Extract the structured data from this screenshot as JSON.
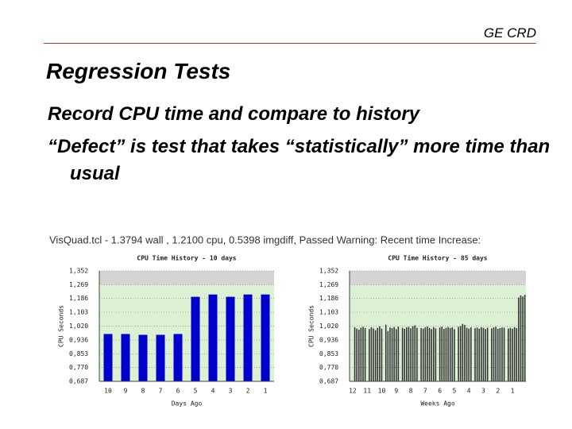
{
  "header": {
    "org": "GE CRD"
  },
  "title": "Regression Tests",
  "bullets": [
    "Record CPU time and compare to history",
    "“Defect” is test that takes “statistically” more time than usual"
  ],
  "caption": "VisQuad.tcl - 1.3794 wall , 1.2100 cpu, 0.5398 imgdiff, Passed Warning: Recent time Increase:",
  "chart_data": [
    {
      "type": "bar",
      "title": "CPU Time History - 10 days",
      "xlabel": "Days Ago",
      "ylabel": "CPU Seconds",
      "color": "#0000cc",
      "categories": [
        "10",
        "9",
        "8",
        "7",
        "6",
        "5",
        "4",
        "3",
        "2",
        "1"
      ],
      "values": [
        0.972,
        0.972,
        0.967,
        0.967,
        0.972,
        1.196,
        1.21,
        1.196,
        1.21,
        1.21
      ],
      "ylim": [
        0.687,
        1.352
      ],
      "yticks": [
        {
          "value": 0.687,
          "label": "0,687"
        },
        {
          "value": 0.77,
          "label": "0,770"
        },
        {
          "value": 0.853,
          "label": "0,853"
        },
        {
          "value": 0.936,
          "label": "0,936"
        },
        {
          "value": 1.02,
          "label": "1,020"
        },
        {
          "value": 1.103,
          "label": "1,103"
        },
        {
          "value": 1.186,
          "label": "1,186"
        },
        {
          "value": 1.269,
          "label": "1,269"
        },
        {
          "value": 1.352,
          "label": "1,352"
        }
      ],
      "grid": true
    },
    {
      "type": "bar",
      "title": "CPU Time History - 85 days",
      "xlabel": "Weeks Ago",
      "ylabel": "CPU Seconds",
      "color": "#333333",
      "categories": [
        null,
        "12",
        null,
        null,
        null,
        null,
        null,
        null,
        "11",
        null,
        null,
        null,
        null,
        null,
        null,
        "10",
        null,
        null,
        null,
        null,
        null,
        null,
        "9",
        null,
        null,
        null,
        null,
        null,
        null,
        "8",
        null,
        null,
        null,
        null,
        null,
        null,
        "7",
        null,
        null,
        null,
        null,
        null,
        null,
        "6",
        null,
        null,
        null,
        null,
        null,
        null,
        "5",
        null,
        null,
        null,
        null,
        null,
        null,
        "4",
        null,
        null,
        null,
        null,
        null,
        null,
        "3",
        null,
        null,
        null,
        null,
        null,
        null,
        "2",
        null,
        null,
        null,
        null,
        null,
        null,
        "1",
        null,
        null,
        null,
        null,
        null,
        null
      ],
      "values": [
        null,
        null,
        1.012,
        1.005,
        0.998,
        1.01,
        1.015,
        1.008,
        null,
        1.002,
        1.013,
        1.006,
        0.995,
        1.009,
        1.018,
        1.004,
        null,
        1.028,
        0.99,
        1.011,
        1.007,
        1.014,
        1.001,
        1.016,
        null,
        1.009,
        1.003,
        1.012,
        1.015,
        1.006,
        1.019,
        1.024,
        1.01,
        null,
        1.008,
        1.004,
        1.012,
        1.017,
        1.009,
        1.002,
        1.013,
        1.006,
        null,
        1.011,
        1.016,
        1.003,
        1.009,
        1.014,
        1.008,
        1.012,
        1.001,
        null,
        1.015,
        1.02,
        1.033,
        1.027,
        1.01,
        1.005,
        1.012,
        null,
        1.007,
        1.011,
        1.004,
        1.013,
        1.009,
        1.002,
        1.01,
        null,
        1.006,
        1.012,
        1.015,
        1.003,
        1.008,
        1.011,
        1.01,
        null,
        1.005,
        1.009,
        1.004,
        1.013,
        1.007,
        1.192,
        1.205,
        1.198,
        1.208
      ],
      "ylim": [
        0.687,
        1.352
      ],
      "yticks": [
        {
          "value": 0.687,
          "label": "0,687"
        },
        {
          "value": 0.77,
          "label": "0,770"
        },
        {
          "value": 0.853,
          "label": "0,853"
        },
        {
          "value": 0.936,
          "label": "0,936"
        },
        {
          "value": 1.02,
          "label": "1,020"
        },
        {
          "value": 1.103,
          "label": "1,103"
        },
        {
          "value": 1.186,
          "label": "1,186"
        },
        {
          "value": 1.269,
          "label": "1,269"
        },
        {
          "value": 1.352,
          "label": "1,352"
        }
      ],
      "grid": true
    }
  ]
}
